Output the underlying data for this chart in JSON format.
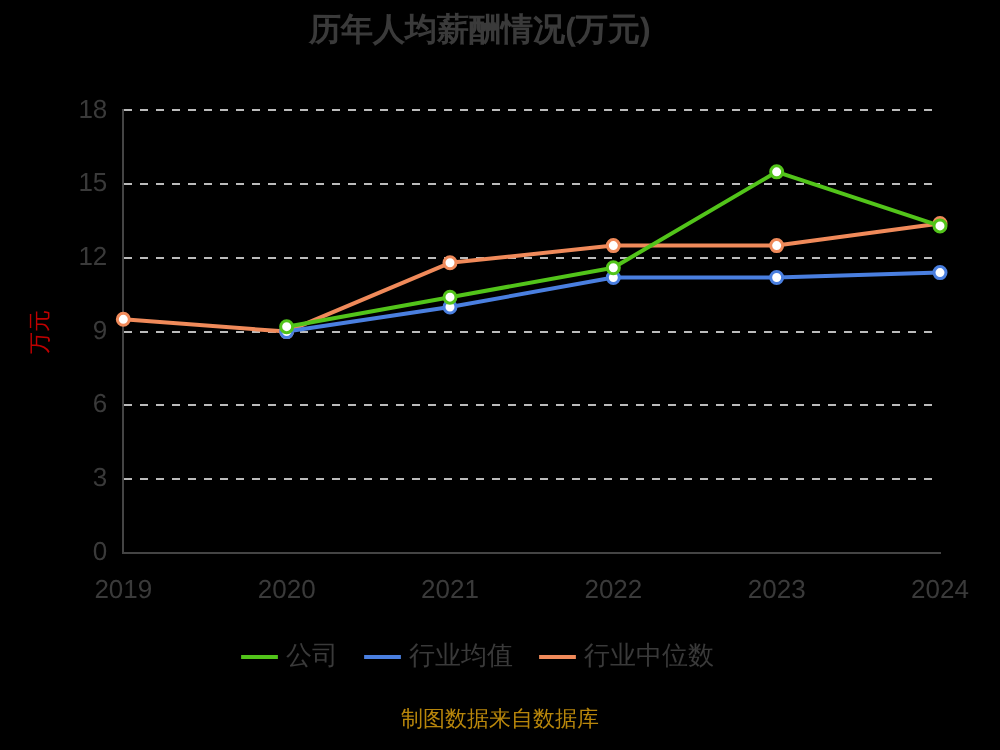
{
  "chart_data": {
    "type": "line",
    "title": "历年人均薪酬情况(万元)",
    "ylabel": "万元",
    "categories": [
      "2019",
      "2020",
      "2021",
      "2022",
      "2023",
      "2024"
    ],
    "series": [
      {
        "name": "公司",
        "color": "#52c41a",
        "values": [
          null,
          9.2,
          10.4,
          11.6,
          15.5,
          13.3
        ]
      },
      {
        "name": "行业均值",
        "color": "#4a7fe0",
        "values": [
          null,
          9.0,
          10.0,
          11.2,
          11.2,
          11.4
        ]
      },
      {
        "name": "行业中位数",
        "color": "#f08a5a",
        "values": [
          9.5,
          9.0,
          11.8,
          12.5,
          12.5,
          13.4
        ]
      }
    ],
    "ylim": [
      0,
      18
    ],
    "yticks": [
      0,
      3,
      6,
      9,
      12,
      15,
      18
    ],
    "grid": "y",
    "legend": "bottom",
    "marker": "circle",
    "line_style": "solid",
    "annotations": [
      "制图数据来自数据库"
    ]
  }
}
